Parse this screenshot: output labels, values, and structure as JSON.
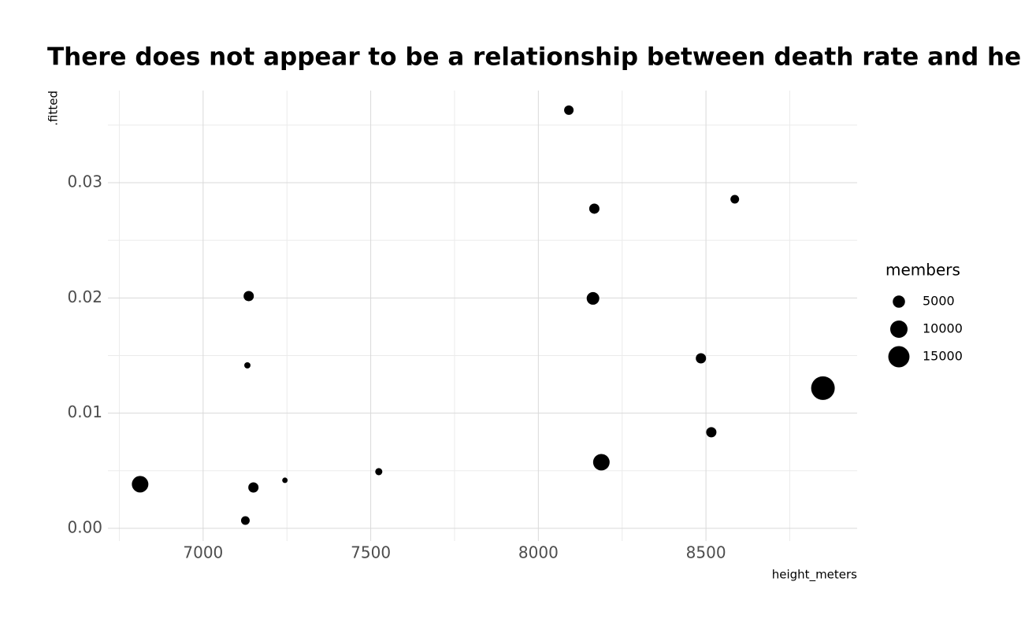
{
  "chart_data": {
    "type": "scatter",
    "title": "There does not appear to be a relationship between death rate and height",
    "x_label": "height_meters",
    "y_label": ".fitted",
    "x": [
      8091,
      8167,
      8586,
      7136,
      8163,
      7132,
      8485,
      8849,
      8516,
      8188,
      6812,
      7150,
      7244,
      7524,
      7126
    ],
    "values": [
      0.0363,
      0.02775,
      0.02857,
      0.02016,
      0.01996,
      0.01415,
      0.01476,
      0.01217,
      0.00834,
      0.00574,
      0.00383,
      0.00355,
      0.00417,
      0.00492,
      0.00068
    ],
    "sizes": [
      3000,
      3500,
      2500,
      3500,
      5300,
      1300,
      3500,
      18600,
      3500,
      9100,
      9100,
      3500,
      1000,
      1700,
      2500
    ],
    "color": "#000000",
    "size_legend_title": "members",
    "size_legend": [
      5000,
      10000,
      15000
    ],
    "xlim": [
      6716,
      8951
    ],
    "xticks": [
      7000,
      7500,
      8000,
      8500
    ],
    "xminor": [
      6750,
      7250,
      7750,
      8250,
      8750
    ],
    "ylim": [
      -0.0011,
      0.038
    ],
    "yticks": [
      {
        "value": 0,
        "label": "0.00"
      },
      0.01,
      0.02,
      0.03
    ],
    "yminor": [
      0.005,
      0.015,
      0.025,
      0.035
    ],
    "grid": true
  }
}
